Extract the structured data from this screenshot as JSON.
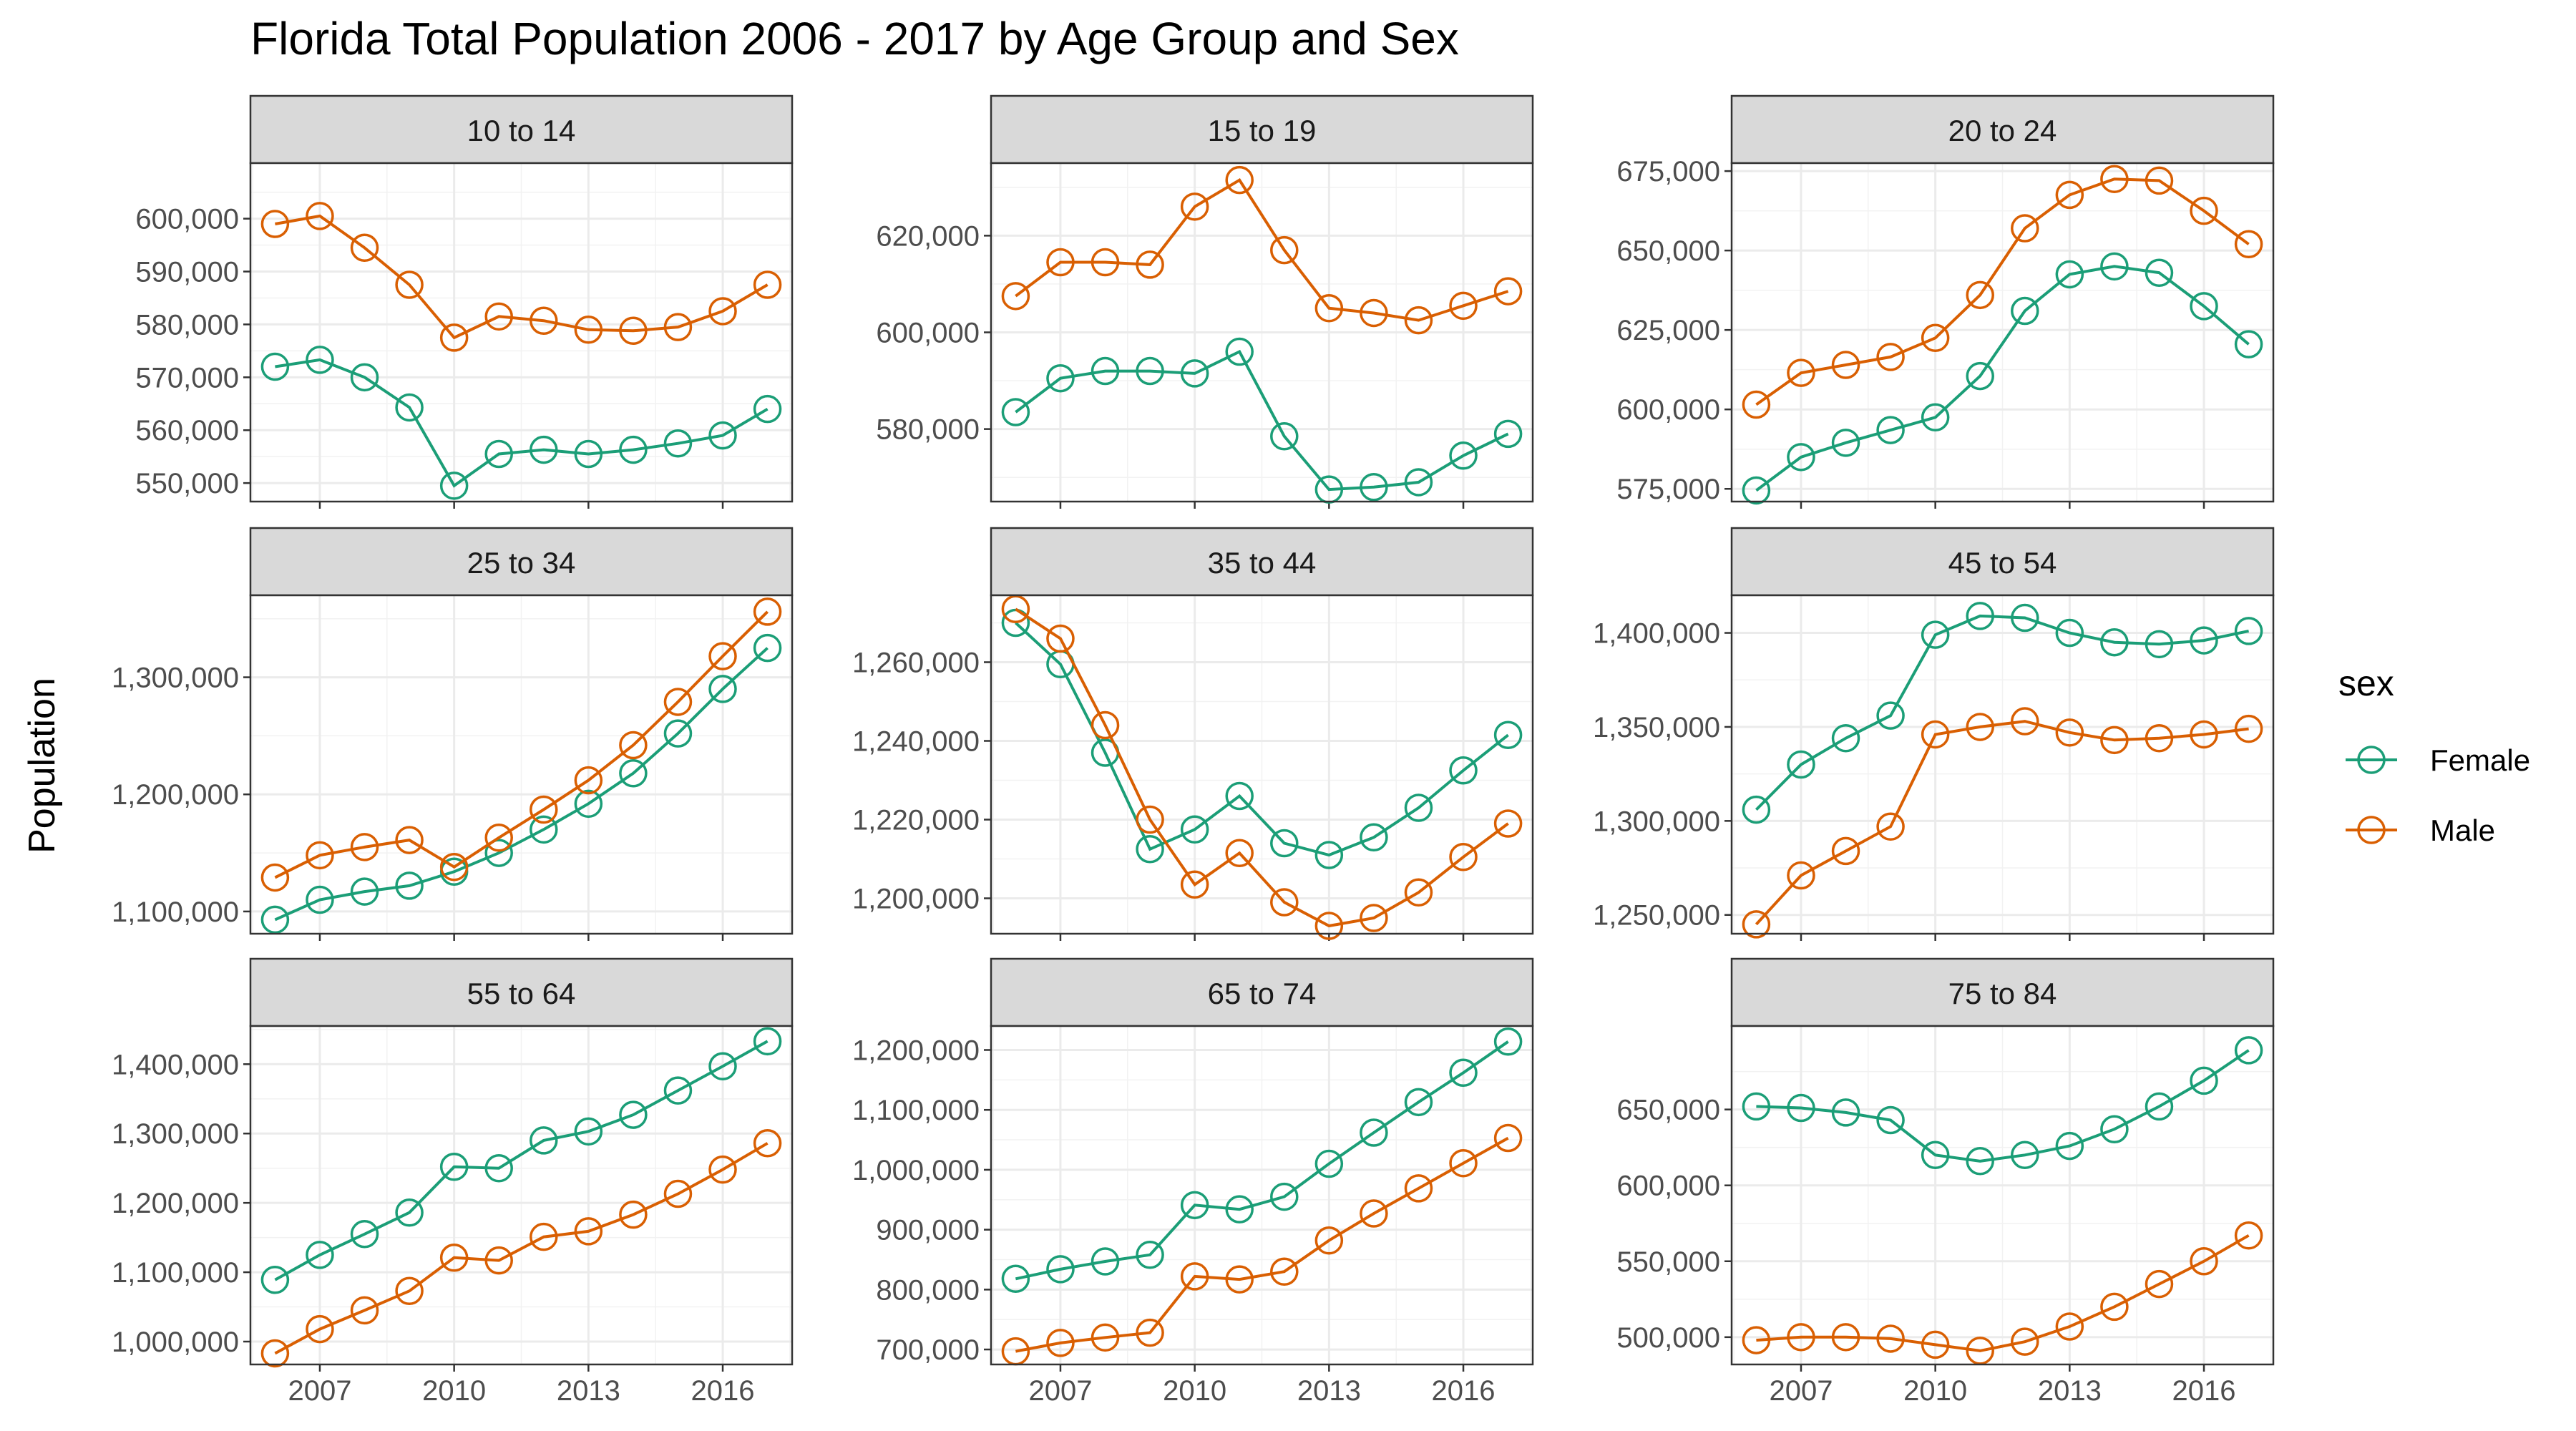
{
  "chart_data": {
    "type": "line",
    "title": "Florida Total Population 2006 - 2017 by Age Group and Sex",
    "ylabel": "Population",
    "xlabel": "",
    "x": [
      2006,
      2007,
      2008,
      2009,
      2010,
      2011,
      2012,
      2013,
      2014,
      2015,
      2016,
      2017
    ],
    "x_ticks": [
      2007,
      2010,
      2013,
      2016
    ],
    "x_tick_labels": [
      "2007",
      "2010",
      "2013",
      "2016"
    ],
    "xlim": [
      2005.45,
      2017.55
    ],
    "grid": true,
    "legend": {
      "title": "sex",
      "position": "right",
      "entries": [
        {
          "name": "Female",
          "color": "#1b9e77"
        },
        {
          "name": "Male",
          "color": "#d95f02"
        }
      ]
    },
    "facets": [
      {
        "label": "10 to 14",
        "ylim": [
          546500,
          610500
        ],
        "y_ticks": [
          550000,
          560000,
          570000,
          580000,
          590000,
          600000
        ],
        "y_tick_labels": [
          "550,000",
          "560,000",
          "570,000",
          "580,000",
          "590,000",
          "600,000"
        ],
        "series": [
          {
            "name": "Female",
            "values": [
              572000,
              573300,
              570000,
              564300,
              549500,
              555500,
              556300,
              555500,
              556300,
              557500,
              559000,
              564000
            ]
          },
          {
            "name": "Male",
            "values": [
              599000,
              600500,
              594500,
              587500,
              577500,
              581500,
              580700,
              579000,
              578800,
              579500,
              582500,
              587500
            ]
          }
        ]
      },
      {
        "label": "15 to 19",
        "ylim": [
          565000,
          635000
        ],
        "y_ticks": [
          580000,
          600000,
          620000
        ],
        "y_tick_labels": [
          "580,000",
          "600,000",
          "620,000"
        ],
        "series": [
          {
            "name": "Female",
            "values": [
              583500,
              590500,
              592000,
              592000,
              591500,
              596000,
              578500,
              567500,
              568000,
              569000,
              574500,
              579000
            ]
          },
          {
            "name": "Male",
            "values": [
              607500,
              614500,
              614500,
              614000,
              626000,
              631500,
              617000,
              605000,
              604000,
              602500,
              605500,
              608500
            ]
          }
        ]
      },
      {
        "label": "20 to 24",
        "ylim": [
          571000,
          677500
        ],
        "y_ticks": [
          575000,
          600000,
          625000,
          650000,
          675000
        ],
        "y_tick_labels": [
          "575,000",
          "600,000",
          "625,000",
          "650,000",
          "675,000"
        ],
        "series": [
          {
            "name": "Female",
            "values": [
              574500,
              585000,
              589500,
              593500,
              597500,
              610500,
              631000,
              642500,
              645000,
              643000,
              632500,
              620500
            ]
          },
          {
            "name": "Male",
            "values": [
              601500,
              611500,
              614000,
              616500,
              622500,
              636000,
              657000,
              667500,
              672500,
              672000,
              662500,
              652000
            ]
          }
        ]
      },
      {
        "label": "25 to 34",
        "ylim": [
          1081000,
          1370000
        ],
        "y_ticks": [
          1100000,
          1200000,
          1300000
        ],
        "y_tick_labels": [
          "1,100,000",
          "1,200,000",
          "1,300,000"
        ],
        "series": [
          {
            "name": "Female",
            "values": [
              1093000,
              1110000,
              1117000,
              1122000,
              1134000,
              1150000,
              1170000,
              1192000,
              1218000,
              1252000,
              1290000,
              1325000
            ]
          },
          {
            "name": "Male",
            "values": [
              1129000,
              1148000,
              1155000,
              1161000,
              1138000,
              1163000,
              1187000,
              1212000,
              1242000,
              1279000,
              1318000,
              1356000
            ]
          }
        ]
      },
      {
        "label": "35 to 44",
        "ylim": [
          1191000,
          1277000
        ],
        "y_ticks": [
          1200000,
          1220000,
          1240000,
          1260000
        ],
        "y_tick_labels": [
          "1,200,000",
          "1,220,000",
          "1,240,000",
          "1,260,000"
        ],
        "series": [
          {
            "name": "Female",
            "values": [
              1270000,
              1259500,
              1237000,
              1212500,
              1217500,
              1226000,
              1214000,
              1211000,
              1215500,
              1223000,
              1232500,
              1241500
            ]
          },
          {
            "name": "Male",
            "values": [
              1273500,
              1266000,
              1244000,
              1220000,
              1203500,
              1211500,
              1199000,
              1193000,
              1195000,
              1201500,
              1210500,
              1219000
            ]
          }
        ]
      },
      {
        "label": "45 to 54",
        "ylim": [
          1240000,
          1420000
        ],
        "y_ticks": [
          1250000,
          1300000,
          1350000,
          1400000
        ],
        "y_tick_labels": [
          "1,250,000",
          "1,300,000",
          "1,350,000",
          "1,400,000"
        ],
        "series": [
          {
            "name": "Female",
            "values": [
              1306000,
              1330000,
              1344000,
              1356000,
              1399000,
              1409000,
              1408000,
              1400000,
              1395000,
              1394000,
              1396000,
              1401000
            ]
          },
          {
            "name": "Male",
            "values": [
              1245000,
              1271000,
              1284000,
              1297000,
              1346000,
              1350000,
              1353000,
              1347000,
              1343000,
              1344000,
              1346000,
              1349000
            ]
          }
        ]
      },
      {
        "label": "55 to 64",
        "ylim": [
          967000,
          1455000
        ],
        "y_ticks": [
          1000000,
          1100000,
          1200000,
          1300000,
          1400000
        ],
        "y_tick_labels": [
          "1,000,000",
          "1,100,000",
          "1,200,000",
          "1,300,000",
          "1,400,000"
        ],
        "series": [
          {
            "name": "Female",
            "values": [
              1089000,
              1125000,
              1155000,
              1186000,
              1252000,
              1250000,
              1290000,
              1303000,
              1327000,
              1362000,
              1397000,
              1433000
            ]
          },
          {
            "name": "Male",
            "values": [
              983000,
              1018000,
              1045000,
              1073000,
              1121000,
              1117000,
              1151000,
              1159000,
              1183000,
              1213000,
              1248000,
              1286000
            ]
          }
        ]
      },
      {
        "label": "65 to 74",
        "ylim": [
          675000,
          1240000
        ],
        "y_ticks": [
          700000,
          800000,
          900000,
          1000000,
          1100000,
          1200000
        ],
        "y_tick_labels": [
          "700,000",
          "800,000",
          "900,000",
          "1,000,000",
          "1,100,000",
          "1,200,000"
        ],
        "series": [
          {
            "name": "Female",
            "values": [
              818000,
              834000,
              847000,
              858000,
              941000,
              934000,
              955000,
              1010000,
              1062000,
              1113000,
              1162000,
              1214000
            ]
          },
          {
            "name": "Male",
            "values": [
              697000,
              711000,
              720000,
              728000,
              822000,
              817000,
              830000,
              882000,
              927000,
              969000,
              1011000,
              1053000
            ]
          }
        ]
      },
      {
        "label": "75 to 84",
        "ylim": [
          482000,
          705000
        ],
        "y_ticks": [
          500000,
          550000,
          600000,
          650000
        ],
        "y_tick_labels": [
          "500,000",
          "550,000",
          "600,000",
          "650,000"
        ],
        "series": [
          {
            "name": "Female",
            "values": [
              652000,
              651000,
              648000,
              643000,
              620000,
              616000,
              620000,
              626000,
              637000,
              652000,
              669000,
              689000
            ]
          },
          {
            "name": "Male",
            "values": [
              498000,
              500000,
              500000,
              499000,
              495000,
              491000,
              497000,
              507000,
              520000,
              535000,
              550000,
              567000
            ]
          }
        ]
      }
    ]
  }
}
